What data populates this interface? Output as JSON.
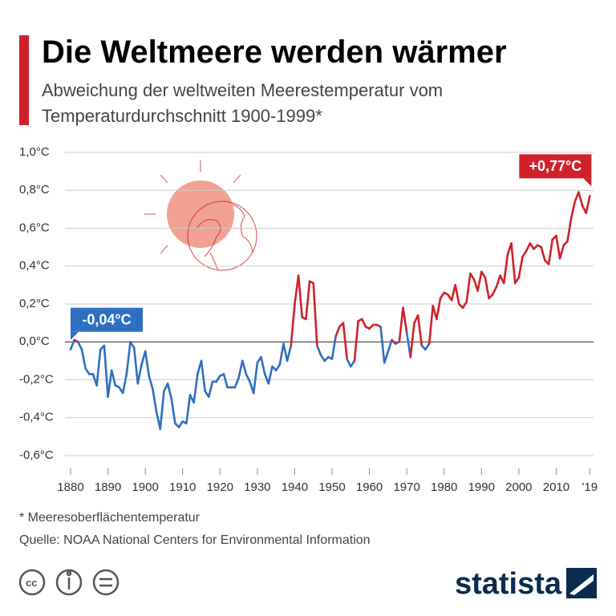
{
  "chart_data": {
    "type": "line",
    "title": "Die Weltmeere werden wärmer",
    "subtitle": [
      "Abweichung der weltweiten Meerestemperatur vom",
      "Temperaturdurchschnitt 1900-1999*"
    ],
    "footnote": "* Meeresoberflächentemperatur",
    "source": "Quelle: NOAA National Centers for Environmental Information",
    "brand": "statista",
    "x": [
      1880,
      1881,
      1882,
      1883,
      1884,
      1885,
      1886,
      1887,
      1888,
      1889,
      1890,
      1891,
      1892,
      1893,
      1894,
      1895,
      1896,
      1897,
      1898,
      1899,
      1900,
      1901,
      1902,
      1903,
      1904,
      1905,
      1906,
      1907,
      1908,
      1909,
      1910,
      1911,
      1912,
      1913,
      1914,
      1915,
      1916,
      1917,
      1918,
      1919,
      1920,
      1921,
      1922,
      1923,
      1924,
      1925,
      1926,
      1927,
      1928,
      1929,
      1930,
      1931,
      1932,
      1933,
      1934,
      1935,
      1936,
      1937,
      1938,
      1939,
      1940,
      1941,
      1942,
      1943,
      1944,
      1945,
      1946,
      1947,
      1948,
      1949,
      1950,
      1951,
      1952,
      1953,
      1954,
      1955,
      1956,
      1957,
      1958,
      1959,
      1960,
      1961,
      1962,
      1963,
      1964,
      1965,
      1966,
      1967,
      1968,
      1969,
      1970,
      1971,
      1972,
      1973,
      1974,
      1975,
      1976,
      1977,
      1978,
      1979,
      1980,
      1981,
      1982,
      1983,
      1984,
      1985,
      1986,
      1987,
      1988,
      1989,
      1990,
      1991,
      1992,
      1993,
      1994,
      1995,
      1996,
      1997,
      1998,
      1999,
      2000,
      2001,
      2002,
      2003,
      2004,
      2005,
      2006,
      2007,
      2008,
      2009,
      2010,
      2011,
      2012,
      2013,
      2014,
      2015,
      2016,
      2017,
      2018,
      2019
    ],
    "values": [
      -0.04,
      0.01,
      0.0,
      -0.04,
      -0.14,
      -0.17,
      -0.17,
      -0.23,
      -0.04,
      -0.02,
      -0.29,
      -0.15,
      -0.23,
      -0.24,
      -0.27,
      -0.17,
      0.0,
      -0.03,
      -0.22,
      -0.12,
      -0.05,
      -0.18,
      -0.25,
      -0.37,
      -0.46,
      -0.26,
      -0.22,
      -0.3,
      -0.43,
      -0.45,
      -0.42,
      -0.43,
      -0.28,
      -0.32,
      -0.17,
      -0.1,
      -0.26,
      -0.29,
      -0.21,
      -0.21,
      -0.18,
      -0.17,
      -0.24,
      -0.24,
      -0.24,
      -0.19,
      -0.1,
      -0.17,
      -0.21,
      -0.27,
      -0.11,
      -0.08,
      -0.17,
      -0.22,
      -0.13,
      -0.15,
      -0.12,
      -0.01,
      -0.1,
      -0.02,
      0.2,
      0.35,
      0.13,
      0.12,
      0.32,
      0.31,
      -0.02,
      -0.07,
      -0.1,
      -0.08,
      -0.09,
      0.03,
      0.08,
      0.1,
      -0.09,
      -0.13,
      -0.1,
      0.11,
      0.12,
      0.08,
      0.07,
      0.09,
      0.09,
      0.08,
      -0.11,
      -0.05,
      0.01,
      -0.01,
      0.0,
      0.18,
      0.05,
      -0.08,
      0.1,
      0.14,
      -0.02,
      -0.04,
      -0.01,
      0.19,
      0.12,
      0.23,
      0.26,
      0.25,
      0.22,
      0.3,
      0.2,
      0.18,
      0.21,
      0.36,
      0.33,
      0.27,
      0.37,
      0.34,
      0.23,
      0.25,
      0.29,
      0.35,
      0.31,
      0.46,
      0.52,
      0.31,
      0.34,
      0.45,
      0.48,
      0.52,
      0.49,
      0.51,
      0.5,
      0.43,
      0.41,
      0.54,
      0.56,
      0.44,
      0.51,
      0.53,
      0.65,
      0.74,
      0.79,
      0.72,
      0.68,
      0.77
    ],
    "value_labels": [
      "-0,04°C",
      null,
      null,
      null,
      null,
      null,
      null,
      null,
      null,
      null,
      null,
      null,
      null,
      null,
      null,
      null,
      null,
      null,
      null,
      null,
      null,
      null,
      null,
      null,
      null,
      null,
      null,
      null,
      null,
      null,
      null,
      null,
      null,
      null,
      null,
      null,
      null,
      null,
      null,
      null,
      null,
      null,
      null,
      null,
      null,
      null,
      null,
      null,
      null,
      null,
      null,
      null,
      null,
      null,
      null,
      null,
      null,
      null,
      null,
      null,
      null,
      null,
      null,
      null,
      null,
      null,
      null,
      null,
      null,
      null,
      null,
      null,
      null,
      null,
      null,
      null,
      null,
      null,
      null,
      null,
      null,
      null,
      null,
      null,
      null,
      null,
      null,
      null,
      null,
      null,
      null,
      null,
      null,
      null,
      null,
      null,
      null,
      null,
      null,
      null,
      null,
      null,
      null,
      null,
      null,
      null,
      null,
      null,
      null,
      null,
      null,
      null,
      null,
      null,
      null,
      null,
      null,
      null,
      null,
      null,
      null,
      null,
      null,
      null,
      null,
      null,
      null,
      null,
      null,
      null,
      null,
      null,
      null,
      null,
      null,
      null,
      null,
      null,
      null,
      "+0,77°C"
    ],
    "colors": {
      "positive": "#d0212b",
      "negative": "#2f6fc0"
    },
    "xlim": [
      1878.5,
      2020
    ],
    "xticks": [
      1880,
      1890,
      1900,
      1910,
      1920,
      1930,
      1940,
      1950,
      1960,
      1970,
      1980,
      1990,
      2000,
      2010,
      {
        "value": 2019,
        "label": "'19"
      }
    ],
    "ylim": [
      -0.6,
      1.0
    ],
    "yticks": [
      {
        "value": 1.0,
        "label": "1,0°C"
      },
      {
        "value": 0.8,
        "label": "0,8°C"
      },
      {
        "value": 0.6,
        "label": "0,6°C"
      },
      {
        "value": 0.4,
        "label": "0,4°C"
      },
      {
        "value": 0.2,
        "label": "0,2°C"
      },
      {
        "value": 0,
        "label": "0,0°C"
      },
      {
        "value": -0.2,
        "label": "-0,2°C"
      },
      {
        "value": -0.4,
        "label": "-0,4°C"
      },
      {
        "value": -0.6,
        "label": "-0,6°C"
      }
    ],
    "grid": true
  }
}
